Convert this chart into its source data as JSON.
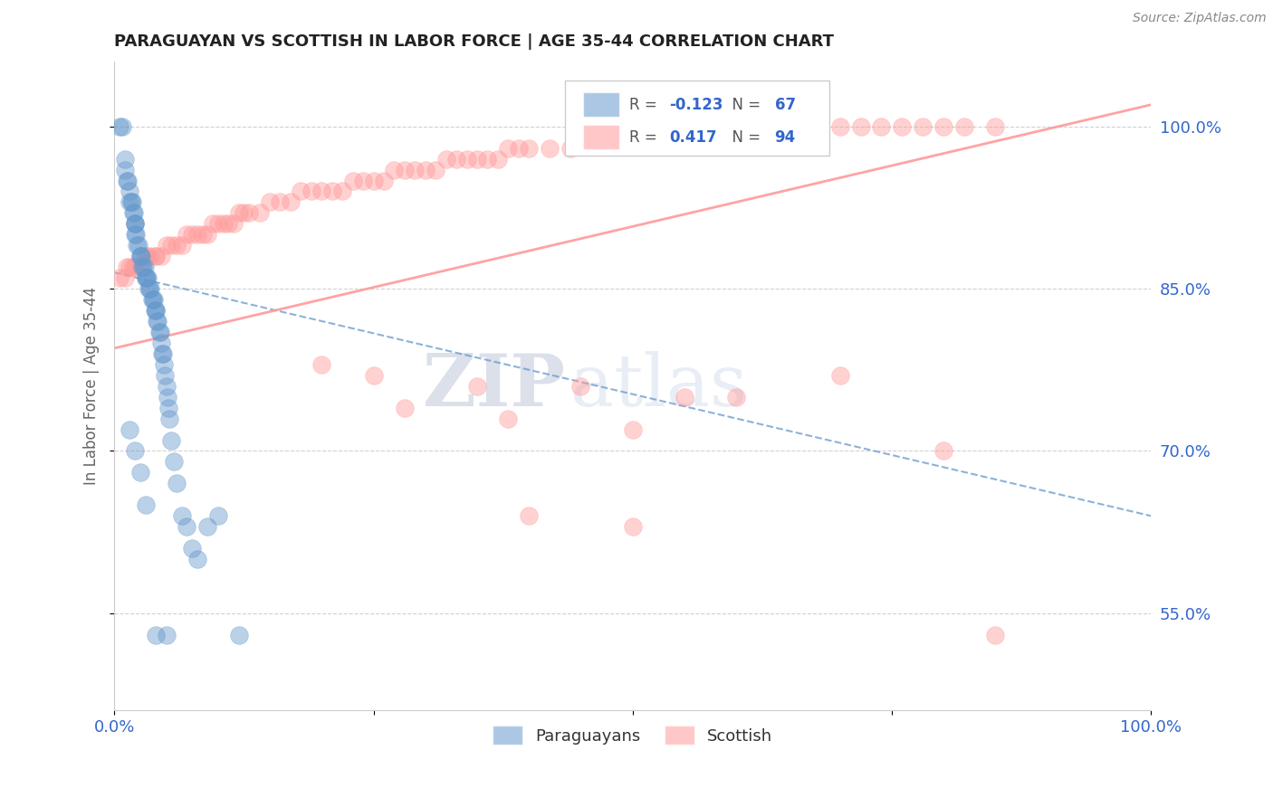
{
  "title": "PARAGUAYAN VS SCOTTISH IN LABOR FORCE | AGE 35-44 CORRELATION CHART",
  "source_text": "Source: ZipAtlas.com",
  "ylabel": "In Labor Force | Age 35-44",
  "xlim": [
    0.0,
    1.0
  ],
  "ylim": [
    0.46,
    1.06
  ],
  "yticks": [
    0.55,
    0.7,
    0.85,
    1.0
  ],
  "ytick_labels": [
    "55.0%",
    "70.0%",
    "85.0%",
    "100.0%"
  ],
  "xticks": [
    0.0,
    0.25,
    0.5,
    0.75,
    1.0
  ],
  "xtick_labels": [
    "0.0%",
    "",
    "",
    "",
    "100.0%"
  ],
  "legend_blue_r": "-0.123",
  "legend_blue_n": "67",
  "legend_pink_r": "0.417",
  "legend_pink_n": "94",
  "blue_color": "#6699CC",
  "pink_color": "#FF9999",
  "watermark_zip": "ZIP",
  "watermark_atlas": "atlas",
  "blue_trend_x": [
    0.0,
    1.0
  ],
  "blue_trend_y": [
    0.865,
    0.64
  ],
  "pink_trend_x": [
    0.0,
    1.0
  ],
  "pink_trend_y": [
    0.795,
    1.02
  ],
  "blue_x": [
    0.005,
    0.008,
    0.01,
    0.01,
    0.012,
    0.013,
    0.015,
    0.015,
    0.016,
    0.017,
    0.018,
    0.019,
    0.02,
    0.02,
    0.02,
    0.02,
    0.021,
    0.022,
    0.023,
    0.025,
    0.025,
    0.026,
    0.027,
    0.028,
    0.029,
    0.03,
    0.03,
    0.031,
    0.032,
    0.033,
    0.034,
    0.035,
    0.036,
    0.037,
    0.038,
    0.039,
    0.04,
    0.04,
    0.041,
    0.042,
    0.043,
    0.044,
    0.045,
    0.046,
    0.047,
    0.048,
    0.049,
    0.05,
    0.051,
    0.052,
    0.053,
    0.055,
    0.057,
    0.06,
    0.065,
    0.07,
    0.075,
    0.08,
    0.09,
    0.1,
    0.12,
    0.015,
    0.02,
    0.025,
    0.03,
    0.04,
    0.05
  ],
  "blue_y": [
    1.0,
    1.0,
    0.97,
    0.96,
    0.95,
    0.95,
    0.94,
    0.93,
    0.93,
    0.93,
    0.92,
    0.92,
    0.91,
    0.91,
    0.91,
    0.9,
    0.9,
    0.89,
    0.89,
    0.88,
    0.88,
    0.88,
    0.87,
    0.87,
    0.87,
    0.86,
    0.86,
    0.86,
    0.86,
    0.85,
    0.85,
    0.85,
    0.84,
    0.84,
    0.84,
    0.83,
    0.83,
    0.83,
    0.82,
    0.82,
    0.81,
    0.81,
    0.8,
    0.79,
    0.79,
    0.78,
    0.77,
    0.76,
    0.75,
    0.74,
    0.73,
    0.71,
    0.69,
    0.67,
    0.64,
    0.63,
    0.61,
    0.6,
    0.63,
    0.64,
    0.53,
    0.72,
    0.7,
    0.68,
    0.65,
    0.53,
    0.53
  ],
  "pink_x": [
    0.005,
    0.01,
    0.012,
    0.015,
    0.018,
    0.02,
    0.025,
    0.03,
    0.03,
    0.035,
    0.04,
    0.04,
    0.045,
    0.05,
    0.055,
    0.06,
    0.065,
    0.07,
    0.075,
    0.08,
    0.085,
    0.09,
    0.095,
    0.1,
    0.105,
    0.11,
    0.115,
    0.12,
    0.125,
    0.13,
    0.14,
    0.15,
    0.16,
    0.17,
    0.18,
    0.19,
    0.2,
    0.21,
    0.22,
    0.23,
    0.24,
    0.25,
    0.26,
    0.27,
    0.28,
    0.29,
    0.3,
    0.31,
    0.32,
    0.33,
    0.34,
    0.35,
    0.36,
    0.37,
    0.38,
    0.39,
    0.4,
    0.42,
    0.44,
    0.46,
    0.48,
    0.5,
    0.52,
    0.54,
    0.55,
    0.56,
    0.58,
    0.6,
    0.62,
    0.64,
    0.66,
    0.68,
    0.7,
    0.72,
    0.74,
    0.76,
    0.78,
    0.8,
    0.82,
    0.85,
    0.55,
    0.45,
    0.35,
    0.25,
    0.2,
    0.28,
    0.38,
    0.5,
    0.6,
    0.7,
    0.8,
    0.85,
    0.5,
    0.4
  ],
  "pink_y": [
    0.86,
    0.86,
    0.87,
    0.87,
    0.87,
    0.87,
    0.87,
    0.88,
    0.88,
    0.88,
    0.88,
    0.88,
    0.88,
    0.89,
    0.89,
    0.89,
    0.89,
    0.9,
    0.9,
    0.9,
    0.9,
    0.9,
    0.91,
    0.91,
    0.91,
    0.91,
    0.91,
    0.92,
    0.92,
    0.92,
    0.92,
    0.93,
    0.93,
    0.93,
    0.94,
    0.94,
    0.94,
    0.94,
    0.94,
    0.95,
    0.95,
    0.95,
    0.95,
    0.96,
    0.96,
    0.96,
    0.96,
    0.96,
    0.97,
    0.97,
    0.97,
    0.97,
    0.97,
    0.97,
    0.98,
    0.98,
    0.98,
    0.98,
    0.98,
    0.99,
    0.99,
    0.99,
    0.99,
    0.99,
    1.0,
    1.0,
    1.0,
    1.0,
    1.0,
    1.0,
    1.0,
    1.0,
    1.0,
    1.0,
    1.0,
    1.0,
    1.0,
    1.0,
    1.0,
    1.0,
    0.75,
    0.76,
    0.76,
    0.77,
    0.78,
    0.74,
    0.73,
    0.72,
    0.75,
    0.77,
    0.7,
    0.53,
    0.63,
    0.64
  ]
}
